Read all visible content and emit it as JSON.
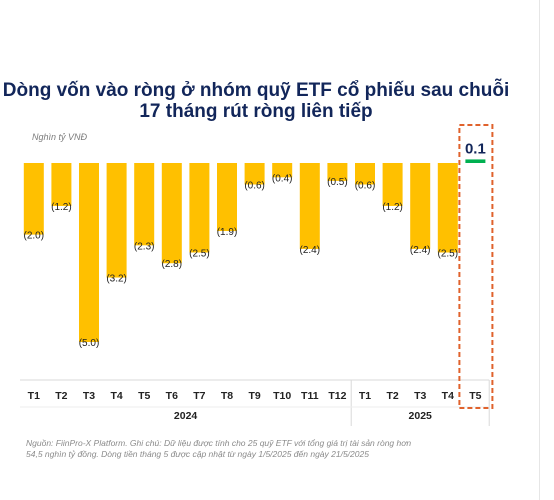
{
  "title": {
    "line1": "Dòng vốn vào ròng ở nhóm quỹ ETF cổ phiếu sau chuỗi",
    "line2": "17 tháng rút ròng liên tiếp"
  },
  "unit_label": "Nghìn tỷ VNĐ",
  "source": {
    "line1": "Nguồn: FiinPro-X Platform. Ghi chú: Dữ liệu được tính cho 25 quỹ ETF với tổng giá trị tài sản ròng hơn",
    "line2": "54,5 nghìn tỷ đồng. Dòng tiền tháng 5 được cập nhật từ ngày 1/5/2025 đến ngày 21/5/2025"
  },
  "colors": {
    "negative": "#FFC000",
    "positive": "#00B050",
    "highlight_box": "#E0622C",
    "title": "#12265A"
  },
  "chart_data": {
    "type": "bar",
    "categories": [
      "T1",
      "T2",
      "T3",
      "T4",
      "T5",
      "T6",
      "T7",
      "T8",
      "T9",
      "T10",
      "T11",
      "T12",
      "T1",
      "T2",
      "T3",
      "T4",
      "T5"
    ],
    "year_groups": [
      {
        "label": "2024",
        "count": 12
      },
      {
        "label": "2025",
        "count": 5
      }
    ],
    "values": [
      -2.0,
      -1.2,
      -5.0,
      -3.2,
      -2.3,
      -2.8,
      -2.5,
      -1.9,
      -0.6,
      -0.4,
      -2.4,
      -0.5,
      -0.6,
      -1.2,
      -2.4,
      -2.5,
      0.1
    ],
    "value_labels": [
      "(2.0)",
      "(1.2)",
      "(5.0)",
      "(3.2)",
      "(2.3)",
      "(2.8)",
      "(2.5)",
      "(1.9)",
      "(0.6)",
      "(0.4)",
      "(2.4)",
      "(0.5)",
      "(0.6)",
      "(1.2)",
      "(2.4)",
      "(2.5)",
      "0.1"
    ],
    "highlight_index": 16,
    "ylim": [
      -5.0,
      0.1
    ],
    "xlabel": "",
    "ylabel": "Nghìn tỷ VNĐ",
    "grid": false,
    "legend": "none"
  }
}
